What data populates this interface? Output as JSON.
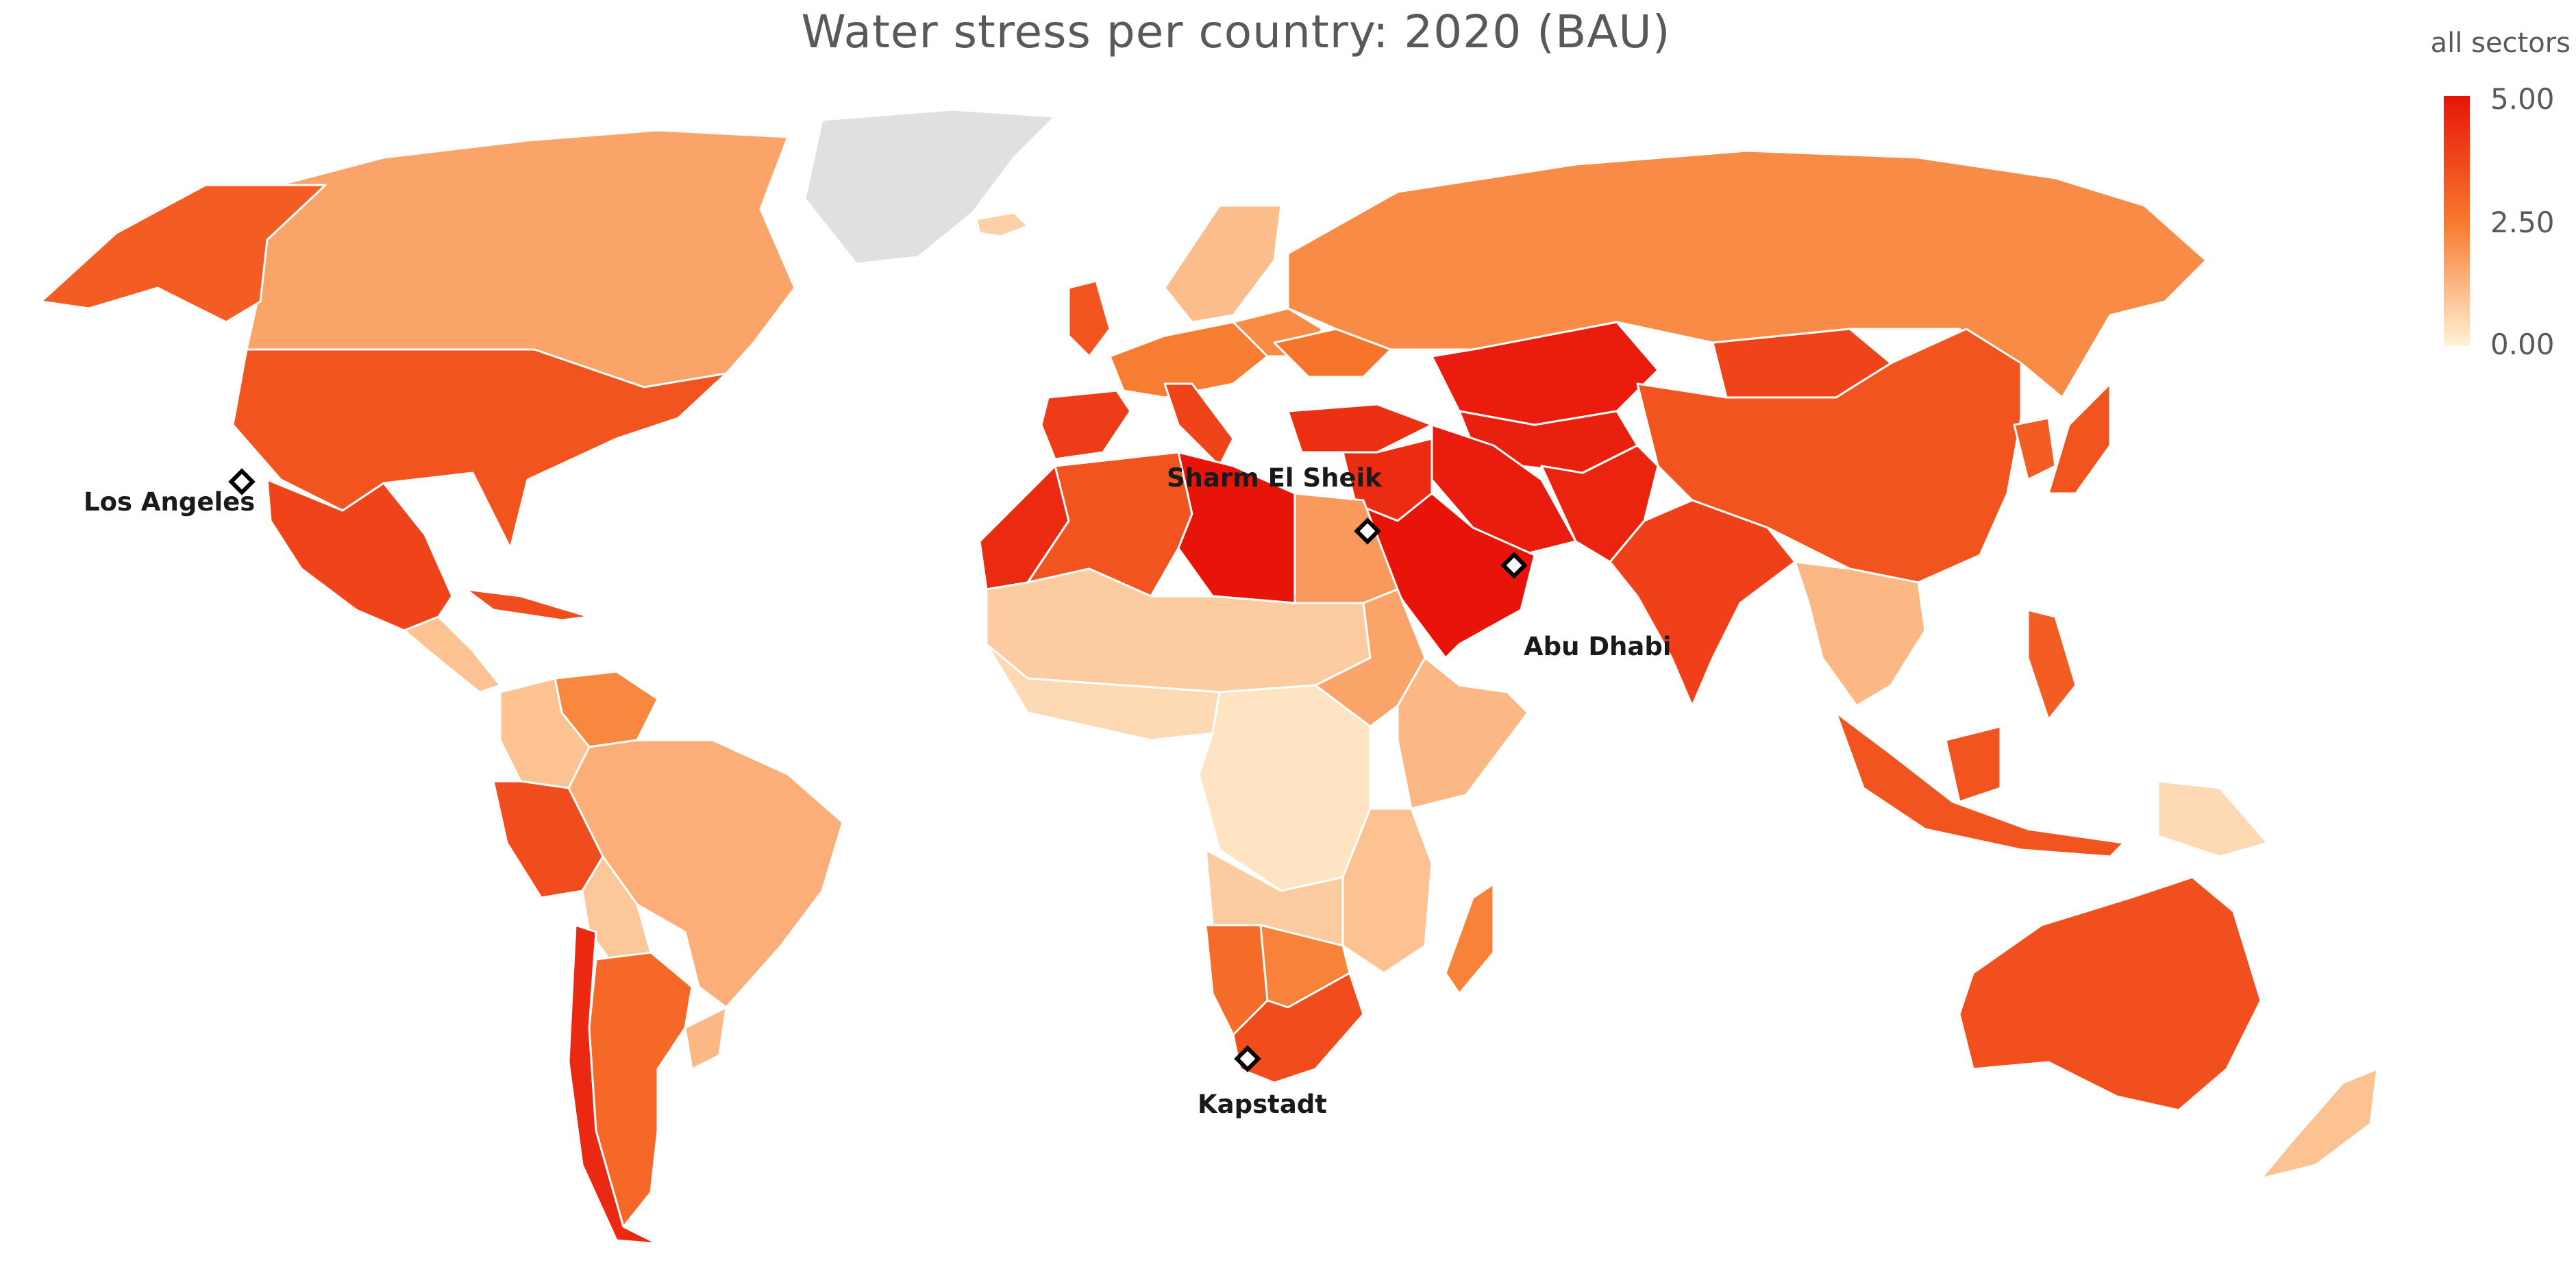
{
  "title": "Water stress per country: 2020 (BAU)",
  "legend": {
    "title": "all sectors",
    "ticks": [
      "5.00",
      "2.50",
      "0.00"
    ],
    "scale_min": 0,
    "scale_max": 5,
    "colors": {
      "high": "#e8140a",
      "mid": "#f7782c",
      "low": "#fff3d6",
      "no_data": "#e0e0e0"
    }
  },
  "cities": [
    {
      "name": "Los Angeles"
    },
    {
      "name": "Sharm El Sheik"
    },
    {
      "name": "Abu Dhabi"
    },
    {
      "name": "Kapstadt"
    }
  ],
  "regions": [
    {
      "name": "Greenland",
      "level": null
    },
    {
      "name": "Canada",
      "level": 1.6
    },
    {
      "name": "Alaska",
      "level": 3.2
    },
    {
      "name": "United States",
      "level": 3.4
    },
    {
      "name": "Mexico",
      "level": 3.8
    },
    {
      "name": "Central America",
      "level": 1.0
    },
    {
      "name": "Cuba",
      "level": 3.6
    },
    {
      "name": "Venezuela",
      "level": 2.2
    },
    {
      "name": "Colombia",
      "level": 1.0
    },
    {
      "name": "Brazil",
      "level": 1.4
    },
    {
      "name": "Peru",
      "level": 3.6
    },
    {
      "name": "Bolivia",
      "level": 0.9
    },
    {
      "name": "Chile",
      "level": 4.5
    },
    {
      "name": "Argentina",
      "level": 2.9
    },
    {
      "name": "Uruguay",
      "level": 1.2
    },
    {
      "name": "Iceland",
      "level": 0.7
    },
    {
      "name": "United Kingdom",
      "level": 3.4
    },
    {
      "name": "Scandinavia",
      "level": 1.1
    },
    {
      "name": "Western Europe",
      "level": 2.4
    },
    {
      "name": "Eastern Europe",
      "level": 2.1
    },
    {
      "name": "Ukraine",
      "level": 2.6
    },
    {
      "name": "Spain",
      "level": 4.0
    },
    {
      "name": "Italy",
      "level": 3.8
    },
    {
      "name": "Turkey",
      "level": 4.3
    },
    {
      "name": "Russia",
      "level": 2.1
    },
    {
      "name": "Kazakhstan",
      "level": 4.8
    },
    {
      "name": "Central Asia",
      "level": 4.7
    },
    {
      "name": "Mongolia",
      "level": 3.8
    },
    {
      "name": "China",
      "level": 3.4
    },
    {
      "name": "Korea",
      "level": 3.2
    },
    {
      "name": "Japan",
      "level": 3.4
    },
    {
      "name": "Iran",
      "level": 4.8
    },
    {
      "name": "Iraq",
      "level": 4.4
    },
    {
      "name": "Saudi Arabia",
      "level": 5.0
    },
    {
      "name": "Afghanistan Pakistan",
      "level": 4.6
    },
    {
      "name": "India",
      "level": 3.9
    },
    {
      "name": "Southeast Asia",
      "level": 1.2
    },
    {
      "name": "Indonesia",
      "level": 3.4
    },
    {
      "name": "Papua New Guinea",
      "level": 0.5
    },
    {
      "name": "Philippines",
      "level": 3.2
    },
    {
      "name": "Australia",
      "level": 3.5
    },
    {
      "name": "New Zealand",
      "level": 1.0
    },
    {
      "name": "Morocco",
      "level": 4.4
    },
    {
      "name": "Algeria",
      "level": 3.4
    },
    {
      "name": "Libya",
      "level": 5.0
    },
    {
      "name": "Egypt",
      "level": 1.8
    },
    {
      "name": "Sahel",
      "level": 0.8
    },
    {
      "name": "West Africa",
      "level": 0.5
    },
    {
      "name": "Central Africa",
      "level": 0.3
    },
    {
      "name": "Sudan",
      "level": 1.6
    },
    {
      "name": "Horn of Africa",
      "level": 1.2
    },
    {
      "name": "East Africa",
      "level": 1.0
    },
    {
      "name": "Angola",
      "level": 0.8
    },
    {
      "name": "Namibia",
      "level": 2.8
    },
    {
      "name": "Botswana",
      "level": 2.3
    },
    {
      "name": "South Africa",
      "level": 3.6
    },
    {
      "name": "Madagascar",
      "level": 2.3
    }
  ]
}
